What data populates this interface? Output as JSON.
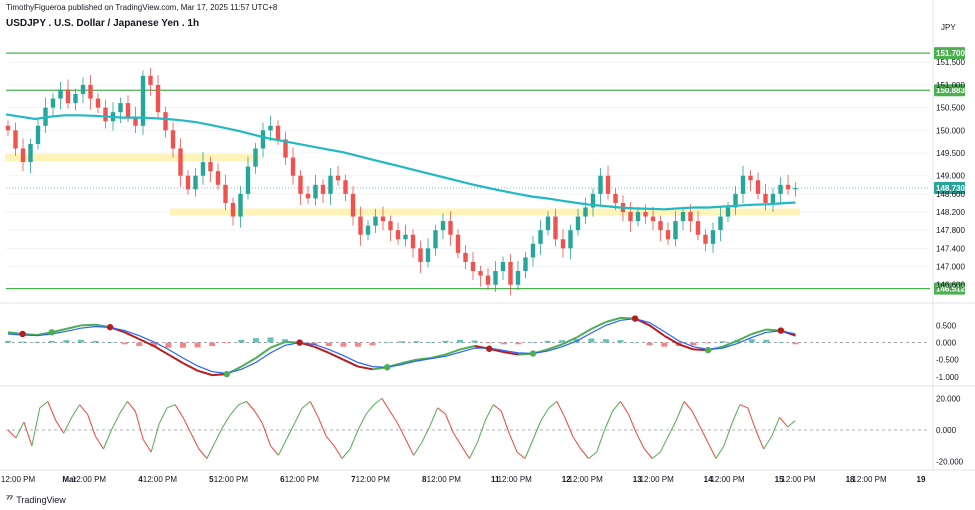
{
  "header": {
    "published_line": "TimothyFigueroa published on TradingView.com, Mar 17, 2025 11:57 UTC+8",
    "symbol_title": "USDJPY . U.S. Dollar / Japanese Yen . 1h",
    "currency": "JPY"
  },
  "branding": {
    "logo_icon": "tradingview-logo-icon",
    "name": "TradingView"
  },
  "colors": {
    "candle_up": "#26a69a",
    "candle_down": "#ef5350",
    "moving_average": "#22b8c4",
    "horizontal_level": "#4caf50",
    "zone": "#fff3b0",
    "macd_signal_green": "#4caf50",
    "macd_signal_red": "#b71c1c",
    "macd_line": "#2962ff",
    "osc_up": "#4caf50",
    "osc_down": "#f44336"
  },
  "chart_data": [
    {
      "type": "candlestick",
      "title": "USDJPY . U.S. Dollar / Japanese Yen . 1h",
      "ylim": [
        146.35,
        152.1
      ],
      "y_tick_labels": [
        "151.500",
        "151.000",
        "150.500",
        "150.000",
        "149.500",
        "149.000",
        "148.600",
        "148.200",
        "147.800",
        "147.400",
        "147.000",
        "146.600"
      ],
      "x_tick_labels": [
        "12:00 PM",
        "Mar",
        "12:00 PM",
        "4",
        "12:00 PM",
        "5",
        "12:00 PM",
        "6",
        "12:00 PM",
        "7",
        "12:00 PM",
        "8",
        "12:00 PM",
        "11",
        "12:00 PM",
        "12",
        "12:00 PM",
        "13",
        "12:00 PM",
        "14",
        "12:00 PM",
        "15",
        "12:00 PM",
        "18",
        "12:00 PM",
        "19"
      ],
      "horizontal_levels": [
        151.7,
        150.883,
        146.512
      ],
      "level_labels": [
        "151.700",
        "150.883",
        "146.512"
      ],
      "last_price": 148.73,
      "last_price_label": "148.730",
      "support_zones": [
        {
          "from_bar": 0,
          "to_bar": 34,
          "price": 149.4
        },
        {
          "from_bar": 22,
          "to_bar": 106,
          "price": 148.2
        }
      ],
      "close_path": [
        150.0,
        149.6,
        149.3,
        149.7,
        150.1,
        150.5,
        150.7,
        150.9,
        150.6,
        150.8,
        151.0,
        150.7,
        150.5,
        150.2,
        150.4,
        150.6,
        150.3,
        150.1,
        151.2,
        151.0,
        150.4,
        150.0,
        149.6,
        149.0,
        148.7,
        149.0,
        149.3,
        149.1,
        148.8,
        148.4,
        148.1,
        148.6,
        149.2,
        149.6,
        150.0,
        150.1,
        149.8,
        149.4,
        149.0,
        148.6,
        148.5,
        148.8,
        148.6,
        149.0,
        148.9,
        148.6,
        148.1,
        147.7,
        147.9,
        148.1,
        148.0,
        147.8,
        147.6,
        147.7,
        147.4,
        147.1,
        147.4,
        147.8,
        148.0,
        147.7,
        147.3,
        147.1,
        146.9,
        146.8,
        146.6,
        146.9,
        147.1,
        146.6,
        146.9,
        147.2,
        147.5,
        147.8,
        148.1,
        147.6,
        147.4,
        147.8,
        148.1,
        148.3,
        148.6,
        149.0,
        148.6,
        148.4,
        148.2,
        148.0,
        148.2,
        148.1,
        148.0,
        147.8,
        147.6,
        148.0,
        148.2,
        148.0,
        147.7,
        147.5,
        147.8,
        148.1,
        148.3,
        148.6,
        149.0,
        148.9,
        148.6,
        148.4,
        148.6,
        148.8,
        148.7,
        148.73
      ],
      "moving_average_path": [
        150.35,
        150.3,
        150.25,
        150.3,
        150.33,
        150.33,
        150.32,
        150.3,
        150.28,
        150.28,
        150.27,
        150.25,
        150.22,
        150.18,
        150.12,
        150.05,
        149.98,
        149.9,
        149.82,
        149.76,
        149.7,
        149.64,
        149.58,
        149.52,
        149.44,
        149.36,
        149.28,
        149.2,
        149.12,
        149.04,
        148.96,
        148.88,
        148.8,
        148.73,
        148.66,
        148.6,
        148.54,
        148.5,
        148.45,
        148.4,
        148.36,
        148.33,
        148.3,
        148.28,
        148.27,
        148.26,
        148.28,
        148.3,
        148.3,
        148.32,
        148.34,
        148.36,
        148.37,
        148.39,
        148.41
      ],
      "moving_average_x_end_bar": 106
    },
    {
      "type": "line",
      "title": "",
      "ylim": [
        -1.15,
        0.95
      ],
      "y_tick_labels": [
        "0.500",
        "0.000",
        "-0.500",
        "-1.000"
      ],
      "zero_line": 0,
      "series": [
        {
          "values": [
            0.3,
            0.25,
            0.22,
            0.3,
            0.4,
            0.5,
            0.52,
            0.45,
            0.3,
            0.1,
            -0.1,
            -0.35,
            -0.6,
            -0.82,
            -0.95,
            -0.92,
            -0.7,
            -0.45,
            -0.15,
            0.02,
            0.0,
            -0.12,
            -0.3,
            -0.5,
            -0.7,
            -0.78,
            -0.72,
            -0.6,
            -0.5,
            -0.45,
            -0.35,
            -0.2,
            -0.1,
            -0.18,
            -0.28,
            -0.35,
            -0.32,
            -0.2,
            -0.05,
            0.15,
            0.4,
            0.6,
            0.72,
            0.7,
            0.5,
            0.2,
            -0.05,
            -0.2,
            -0.22,
            -0.12,
            0.05,
            0.25,
            0.38,
            0.35,
            0.2
          ]
        },
        {
          "values": [
            0.25,
            0.22,
            0.2,
            0.25,
            0.33,
            0.42,
            0.47,
            0.44,
            0.35,
            0.2,
            0.02,
            -0.2,
            -0.45,
            -0.68,
            -0.85,
            -0.9,
            -0.78,
            -0.58,
            -0.3,
            -0.08,
            0.0,
            -0.05,
            -0.2,
            -0.38,
            -0.58,
            -0.7,
            -0.72,
            -0.64,
            -0.54,
            -0.47,
            -0.4,
            -0.28,
            -0.16,
            -0.16,
            -0.23,
            -0.3,
            -0.32,
            -0.25,
            -0.12,
            0.05,
            0.28,
            0.5,
            0.65,
            0.7,
            0.58,
            0.32,
            0.05,
            -0.12,
            -0.2,
            -0.16,
            -0.03,
            0.15,
            0.3,
            0.34,
            0.25
          ]
        }
      ],
      "histogram": [
        0.05,
        0.03,
        0.02,
        0.05,
        0.07,
        0.08,
        0.05,
        0.01,
        -0.05,
        -0.1,
        -0.12,
        -0.15,
        -0.15,
        -0.14,
        -0.1,
        -0.02,
        0.08,
        0.13,
        0.15,
        0.1,
        0.0,
        -0.07,
        -0.1,
        -0.12,
        -0.12,
        -0.08,
        0.0,
        0.04,
        0.04,
        0.02,
        0.05,
        0.08,
        0.06,
        -0.02,
        -0.05,
        -0.05,
        0.0,
        0.05,
        0.07,
        0.1,
        0.12,
        0.1,
        0.07,
        0.0,
        -0.08,
        -0.12,
        -0.1,
        -0.08,
        -0.02,
        0.04,
        0.08,
        0.1,
        0.08,
        0.01,
        -0.05
      ],
      "cross_markers": [
        {
          "index": 1,
          "color": "red"
        },
        {
          "index": 3,
          "color": "green"
        },
        {
          "index": 7,
          "color": "red"
        },
        {
          "index": 15,
          "color": "green"
        },
        {
          "index": 20,
          "color": "red"
        },
        {
          "index": 26,
          "color": "green"
        },
        {
          "index": 33,
          "color": "red"
        },
        {
          "index": 36,
          "color": "green"
        },
        {
          "index": 43,
          "color": "red"
        },
        {
          "index": 48,
          "color": "green"
        },
        {
          "index": 53,
          "color": "red"
        }
      ]
    },
    {
      "type": "line",
      "title": "",
      "ylim": [
        -24,
        24
      ],
      "y_tick_labels": [
        "20.000",
        "0.000",
        "-20.000"
      ],
      "zero_line": 0,
      "series": [
        {
          "values": [
            0,
            -5,
            5,
            -10,
            14,
            18,
            6,
            -2,
            8,
            16,
            10,
            -4,
            -12,
            0,
            10,
            18,
            12,
            -6,
            -14,
            4,
            14,
            16,
            8,
            -2,
            -12,
            -18,
            -8,
            2,
            10,
            16,
            18,
            12,
            4,
            -10,
            -16,
            -6,
            4,
            14,
            18,
            8,
            -4,
            -10,
            -18,
            -12,
            0,
            10,
            16,
            20,
            12,
            4,
            -6,
            -16,
            -8,
            2,
            14,
            10,
            -2,
            -10,
            -18,
            -8,
            6,
            16,
            12,
            -2,
            -14,
            -18,
            -6,
            6,
            14,
            18,
            8,
            -4,
            -12,
            -18,
            -14,
            0,
            12,
            18,
            10,
            -2,
            -12,
            -18,
            -14,
            -4,
            6,
            18,
            12,
            2,
            -8,
            -18,
            -10,
            4,
            16,
            14,
            0,
            -12,
            -4,
            8,
            2,
            6
          ]
        }
      ]
    }
  ]
}
